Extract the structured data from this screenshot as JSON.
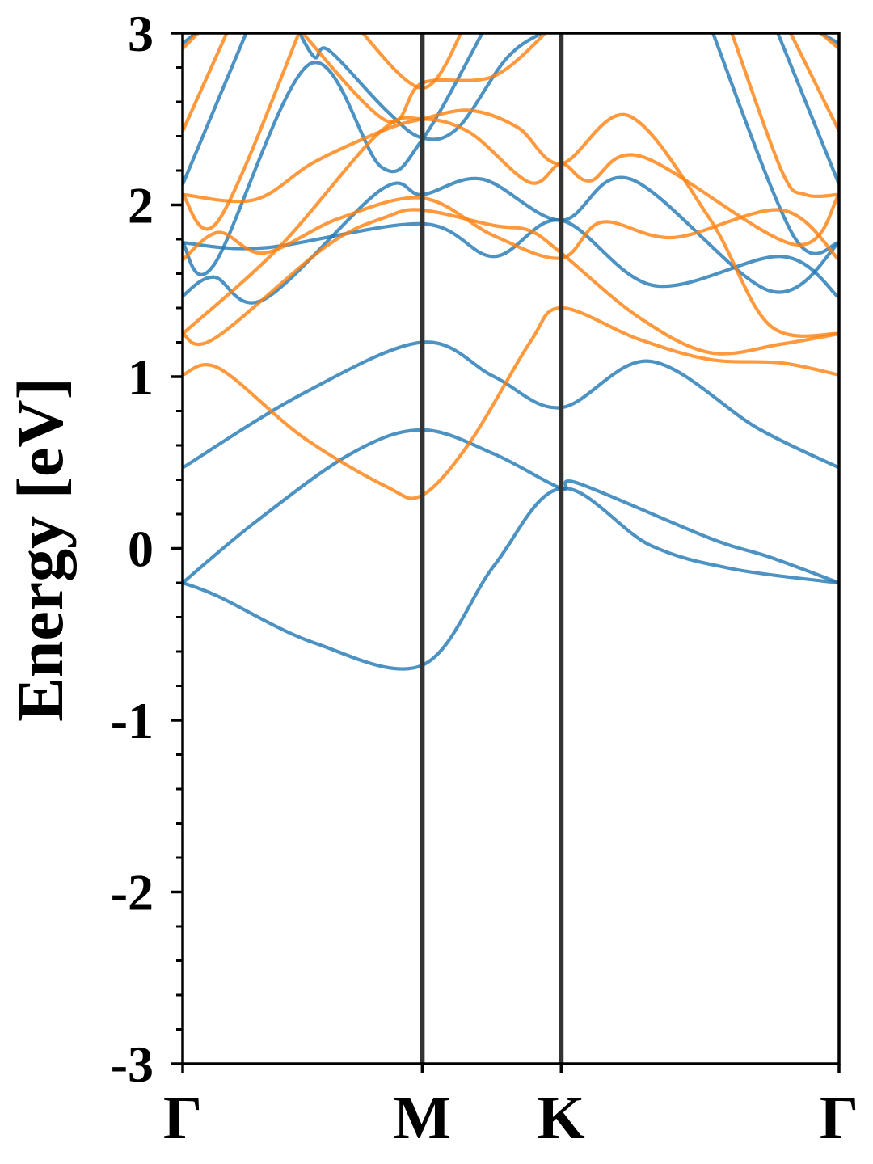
{
  "chart_data": {
    "type": "line",
    "title": "",
    "xlabel": "",
    "ylabel": "Energy [eV]",
    "ylim": [
      -3,
      3
    ],
    "yticks": [
      3,
      2,
      1,
      0,
      -1,
      -2,
      -3
    ],
    "ytick_labels": [
      "3",
      "2",
      "1",
      "0",
      "-1",
      "-2",
      "-3"
    ],
    "yminor_step": 0.2,
    "xlim": [
      0,
      2.74
    ],
    "kpoints": [
      {
        "label": "Γ",
        "k": 0
      },
      {
        "label": "M",
        "k": 1.0
      },
      {
        "label": "K",
        "k": 1.58
      },
      {
        "label": "Γ",
        "k": 2.74
      }
    ],
    "grid": false,
    "series_colors": {
      "spin1": "#1f77b4",
      "spin2": "#ff7f0e",
      "kline": "#333333"
    },
    "series": [
      {
        "name": "spin1",
        "bands": [
          [
            [
              0,
              -0.2
            ],
            [
              0.15,
              -0.28
            ],
            [
              0.55,
              -0.55
            ],
            [
              1,
              -0.68
            ],
            [
              1.3,
              -0.1
            ],
            [
              1.58,
              0.35
            ],
            [
              1.95,
              0.02
            ],
            [
              2.3,
              -0.12
            ],
            [
              2.74,
              -0.2
            ]
          ],
          [
            [
              0,
              -0.2
            ],
            [
              0.3,
              0.15
            ],
            [
              0.7,
              0.55
            ],
            [
              1,
              0.69
            ],
            [
              1.3,
              0.55
            ],
            [
              1.58,
              0.35
            ],
            [
              1.65,
              0.38
            ],
            [
              2.2,
              0.06
            ],
            [
              2.45,
              -0.05
            ],
            [
              2.74,
              -0.2
            ]
          ],
          [
            [
              0,
              0.47
            ],
            [
              0.5,
              0.9
            ],
            [
              1,
              1.2
            ],
            [
              1.3,
              1.0
            ],
            [
              1.58,
              0.82
            ],
            [
              1.95,
              1.09
            ],
            [
              2.4,
              0.7
            ],
            [
              2.74,
              0.47
            ]
          ],
          [
            [
              0,
              1.47
            ],
            [
              0.13,
              1.58
            ],
            [
              0.34,
              1.45
            ],
            [
              0.83,
              2.09
            ],
            [
              1,
              2.06
            ],
            [
              1.25,
              2.15
            ],
            [
              1.58,
              1.91
            ],
            [
              1.87,
              2.15
            ],
            [
              2.45,
              1.5
            ],
            [
              2.74,
              1.78
            ]
          ],
          [
            [
              0,
              1.78
            ],
            [
              0.34,
              1.75
            ],
            [
              1,
              1.89
            ],
            [
              1.3,
              1.7
            ],
            [
              1.58,
              1.91
            ],
            [
              1.97,
              1.53
            ],
            [
              2.5,
              1.7
            ],
            [
              2.74,
              1.46
            ]
          ],
          [
            [
              0,
              1.78
            ],
            [
              0.13,
              1.65
            ],
            [
              0.53,
              2.82
            ],
            [
              0.83,
              2.22
            ],
            [
              1,
              2.38
            ],
            [
              1.27,
              3.05
            ]
          ],
          [
            [
              0.47,
              3.05
            ],
            [
              0.55,
              2.86
            ],
            [
              0.61,
              2.9
            ],
            [
              0.85,
              2.55
            ],
            [
              1,
              2.39
            ],
            [
              1.15,
              2.45
            ],
            [
              1.35,
              2.85
            ],
            [
              1.5,
              3.0
            ],
            [
              1.58,
              3.02
            ]
          ],
          [
            [
              0,
              2.12
            ],
            [
              0.28,
              3.05
            ]
          ],
          [
            [
              0,
              2.94
            ],
            [
              0.1,
              3.05
            ]
          ],
          [
            [
              2.2,
              3.05
            ],
            [
              2.55,
              1.82
            ],
            [
              2.74,
              1.78
            ]
          ],
          [
            [
              2.47,
              3.05
            ],
            [
              2.74,
              2.12
            ]
          ],
          [
            [
              2.6,
              3.05
            ],
            [
              2.74,
              2.94
            ]
          ]
        ]
      },
      {
        "name": "spin2",
        "bands": [
          [
            [
              0,
              1.01
            ],
            [
              0.15,
              1.05
            ],
            [
              0.5,
              0.65
            ],
            [
              0.85,
              0.36
            ],
            [
              1,
              0.31
            ],
            [
              1.2,
              0.62
            ],
            [
              1.45,
              1.2
            ],
            [
              1.58,
              1.4
            ],
            [
              1.9,
              1.22
            ],
            [
              2.2,
              1.1
            ],
            [
              2.5,
              1.08
            ],
            [
              2.74,
              1.01
            ]
          ],
          [
            [
              0,
              1.25
            ],
            [
              0.13,
              1.22
            ],
            [
              0.6,
              1.76
            ],
            [
              0.85,
              1.93
            ],
            [
              1,
              1.97
            ],
            [
              1.3,
              1.88
            ],
            [
              1.45,
              1.85
            ],
            [
              1.58,
              1.72
            ],
            [
              1.9,
              1.35
            ],
            [
              2.2,
              1.14
            ],
            [
              2.5,
              1.19
            ],
            [
              2.74,
              1.25
            ]
          ],
          [
            [
              0,
              1.68
            ],
            [
              0.15,
              1.84
            ],
            [
              0.34,
              1.72
            ],
            [
              0.65,
              1.92
            ],
            [
              1,
              2.04
            ],
            [
              1.3,
              1.82
            ],
            [
              1.58,
              1.69
            ],
            [
              1.75,
              1.9
            ],
            [
              2.05,
              1.81
            ],
            [
              2.5,
              1.97
            ],
            [
              2.74,
              1.68
            ]
          ],
          [
            [
              0,
              1.25
            ],
            [
              0.4,
              1.75
            ],
            [
              0.82,
              2.42
            ],
            [
              1,
              2.5
            ],
            [
              1.2,
              2.42
            ],
            [
              1.45,
              2.13
            ],
            [
              1.58,
              2.24
            ],
            [
              1.7,
              2.14
            ],
            [
              1.92,
              2.28
            ],
            [
              2.55,
              1.77
            ],
            [
              2.74,
              2.06
            ]
          ],
          [
            [
              0,
              2.06
            ],
            [
              0.3,
              2.03
            ],
            [
              0.55,
              2.25
            ],
            [
              0.85,
              2.44
            ],
            [
              1,
              2.5
            ],
            [
              1.2,
              2.55
            ],
            [
              1.4,
              2.45
            ],
            [
              1.58,
              2.24
            ],
            [
              1.86,
              2.52
            ],
            [
              2.2,
              1.92
            ],
            [
              2.45,
              1.3
            ],
            [
              2.74,
              1.25
            ]
          ],
          [
            [
              0,
              2.06
            ],
            [
              0.15,
              1.91
            ],
            [
              0.5,
              3.05
            ]
          ],
          [
            [
              0.47,
              3.05
            ],
            [
              0.85,
              2.49
            ],
            [
              1,
              2.71
            ],
            [
              1.3,
              2.75
            ],
            [
              1.55,
              3.05
            ]
          ],
          [
            [
              0.72,
              3.05
            ],
            [
              1,
              2.68
            ],
            [
              1.18,
              3.05
            ]
          ],
          [
            [
              0,
              2.43
            ],
            [
              0.2,
              3.05
            ]
          ],
          [
            [
              0,
              2.91
            ],
            [
              0.1,
              3.05
            ]
          ],
          [
            [
              2.28,
              3.05
            ],
            [
              2.5,
              2.2
            ],
            [
              2.6,
              2.06
            ],
            [
              2.74,
              2.06
            ]
          ],
          [
            [
              2.52,
              3.05
            ],
            [
              2.74,
              2.43
            ]
          ],
          [
            [
              2.62,
              3.05
            ],
            [
              2.74,
              2.91
            ]
          ]
        ]
      }
    ]
  }
}
